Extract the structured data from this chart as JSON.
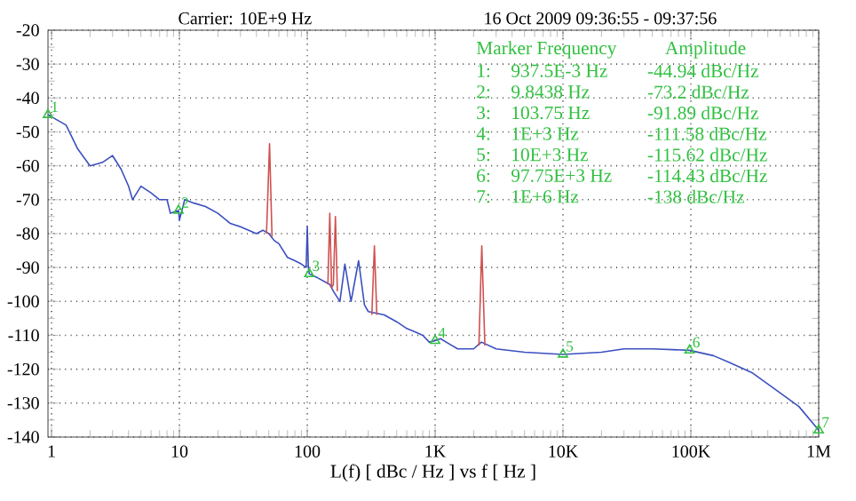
{
  "chart_data": {
    "type": "line",
    "title": "Carrier: 10E+9 Hz",
    "subtitle": "16 Oct 2009  09:36:55 - 09:37:56",
    "xlabel": "L(f)  [ dBc / Hz ]  vs  f  [ Hz ]",
    "log": "x",
    "grid": true,
    "marker": "none",
    "xlim": [
      0.9375,
      1000000
    ],
    "ylim": [
      -140,
      -20
    ],
    "xticks": [
      1,
      10,
      100,
      {
        "value": 1000,
        "label": "1K"
      },
      {
        "value": 10000,
        "label": "10K"
      },
      {
        "value": 100000,
        "label": "100K"
      },
      {
        "value": 1000000,
        "label": "1M"
      }
    ],
    "yticks": [
      -140,
      -130,
      -120,
      -110,
      -100,
      -90,
      -80,
      -70,
      -60,
      -50,
      -40,
      -30,
      -20
    ],
    "series": [
      {
        "color": "#3a4fc0",
        "x": [
          0.9375,
          1.3,
          1.6,
          2,
          2.5,
          3,
          3.5,
          4,
          4.3,
          5,
          6,
          7,
          8,
          8.5,
          9.8438,
          10,
          11,
          13,
          16,
          20,
          25,
          30,
          40,
          45,
          50,
          55,
          60,
          70,
          80,
          90,
          98,
          100,
          102,
          103.75,
          120,
          150,
          160,
          180,
          197,
          220,
          252,
          280,
          300,
          400,
          500,
          600,
          700,
          800,
          900,
          1000,
          1100,
          1500,
          2000,
          2300,
          3000,
          5000,
          10000,
          20000,
          30000,
          50000,
          97750,
          150000,
          200000,
          300000,
          500000,
          700000,
          1000000
        ],
        "values": [
          -44.94,
          -48,
          -55,
          -60,
          -59,
          -57,
          -61,
          -66,
          -70,
          -66,
          -68,
          -70,
          -70,
          -74,
          -73.2,
          -76,
          -70,
          -71,
          -72,
          -74,
          -77,
          -78,
          -80,
          -79,
          -80,
          -82,
          -83,
          -87,
          -88,
          -89,
          -90,
          -78,
          -90,
          -91.89,
          -93,
          -95,
          -97,
          -100,
          -89,
          -100,
          -88,
          -101,
          -103,
          -104,
          -106,
          -108,
          -109,
          -110,
          -112,
          -111.58,
          -111,
          -114,
          -114,
          -112,
          -114,
          -115,
          -115.62,
          -115,
          -114,
          -114,
          -114.43,
          -116,
          -118,
          -121,
          -127,
          -131,
          -138
        ]
      },
      {
        "color": "#d05050",
        "x": [
          48,
          50.7,
          53,
          60,
          145,
          150,
          155,
          160,
          166,
          172,
          200,
          320,
          335,
          350,
          1000,
          2200,
          2317,
          2450
        ],
        "values": [
          -80,
          -53.5,
          -81,
          null,
          -95,
          -74,
          -96,
          -95,
          -75,
          -97,
          null,
          -104,
          -83.6,
          -104,
          null,
          -113,
          -83.6,
          -113
        ]
      },
      {
        "type": "scatter",
        "marker": "triangle",
        "color": "#30c040",
        "x": [
          0.9375,
          9.8438,
          103.75,
          1000,
          10000,
          97750,
          1000000
        ],
        "values": [
          -44.94,
          -73.2,
          -91.89,
          -111.58,
          -115.62,
          -114.43,
          -138
        ]
      }
    ],
    "annotations": [
      "Marker Frequency",
      "Amplitude",
      "1:",
      "937.5E-3 Hz",
      "-44.94 dBc/Hz",
      "2:",
      "9.8438 Hz",
      "-73.2 dBc/Hz",
      "3:",
      "103.75 Hz",
      "-91.89 dBc/Hz",
      "4:",
      "1E+3 Hz",
      "-111.58 dBc/Hz",
      "5:",
      "10E+3 Hz",
      "-115.62 dBc/Hz",
      "6:",
      "97.75E+3 Hz",
      "-114.43 dBc/Hz",
      "7:",
      "1E+6 Hz",
      "-138 dBc/Hz",
      {
        "text": "1",
        "x": 0.9375,
        "y": -44.94
      },
      {
        "text": "2",
        "x": 9.8438,
        "y": -73.2
      },
      {
        "text": "3",
        "x": 103.75,
        "y": -91.89
      },
      {
        "text": "4",
        "x": 1000,
        "y": -111.58
      },
      {
        "text": "5",
        "x": 10000,
        "y": -115.62
      },
      {
        "text": "6",
        "x": 97750,
        "y": -114.43
      },
      {
        "text": "7",
        "x": 1000000,
        "y": -138
      }
    ]
  }
}
